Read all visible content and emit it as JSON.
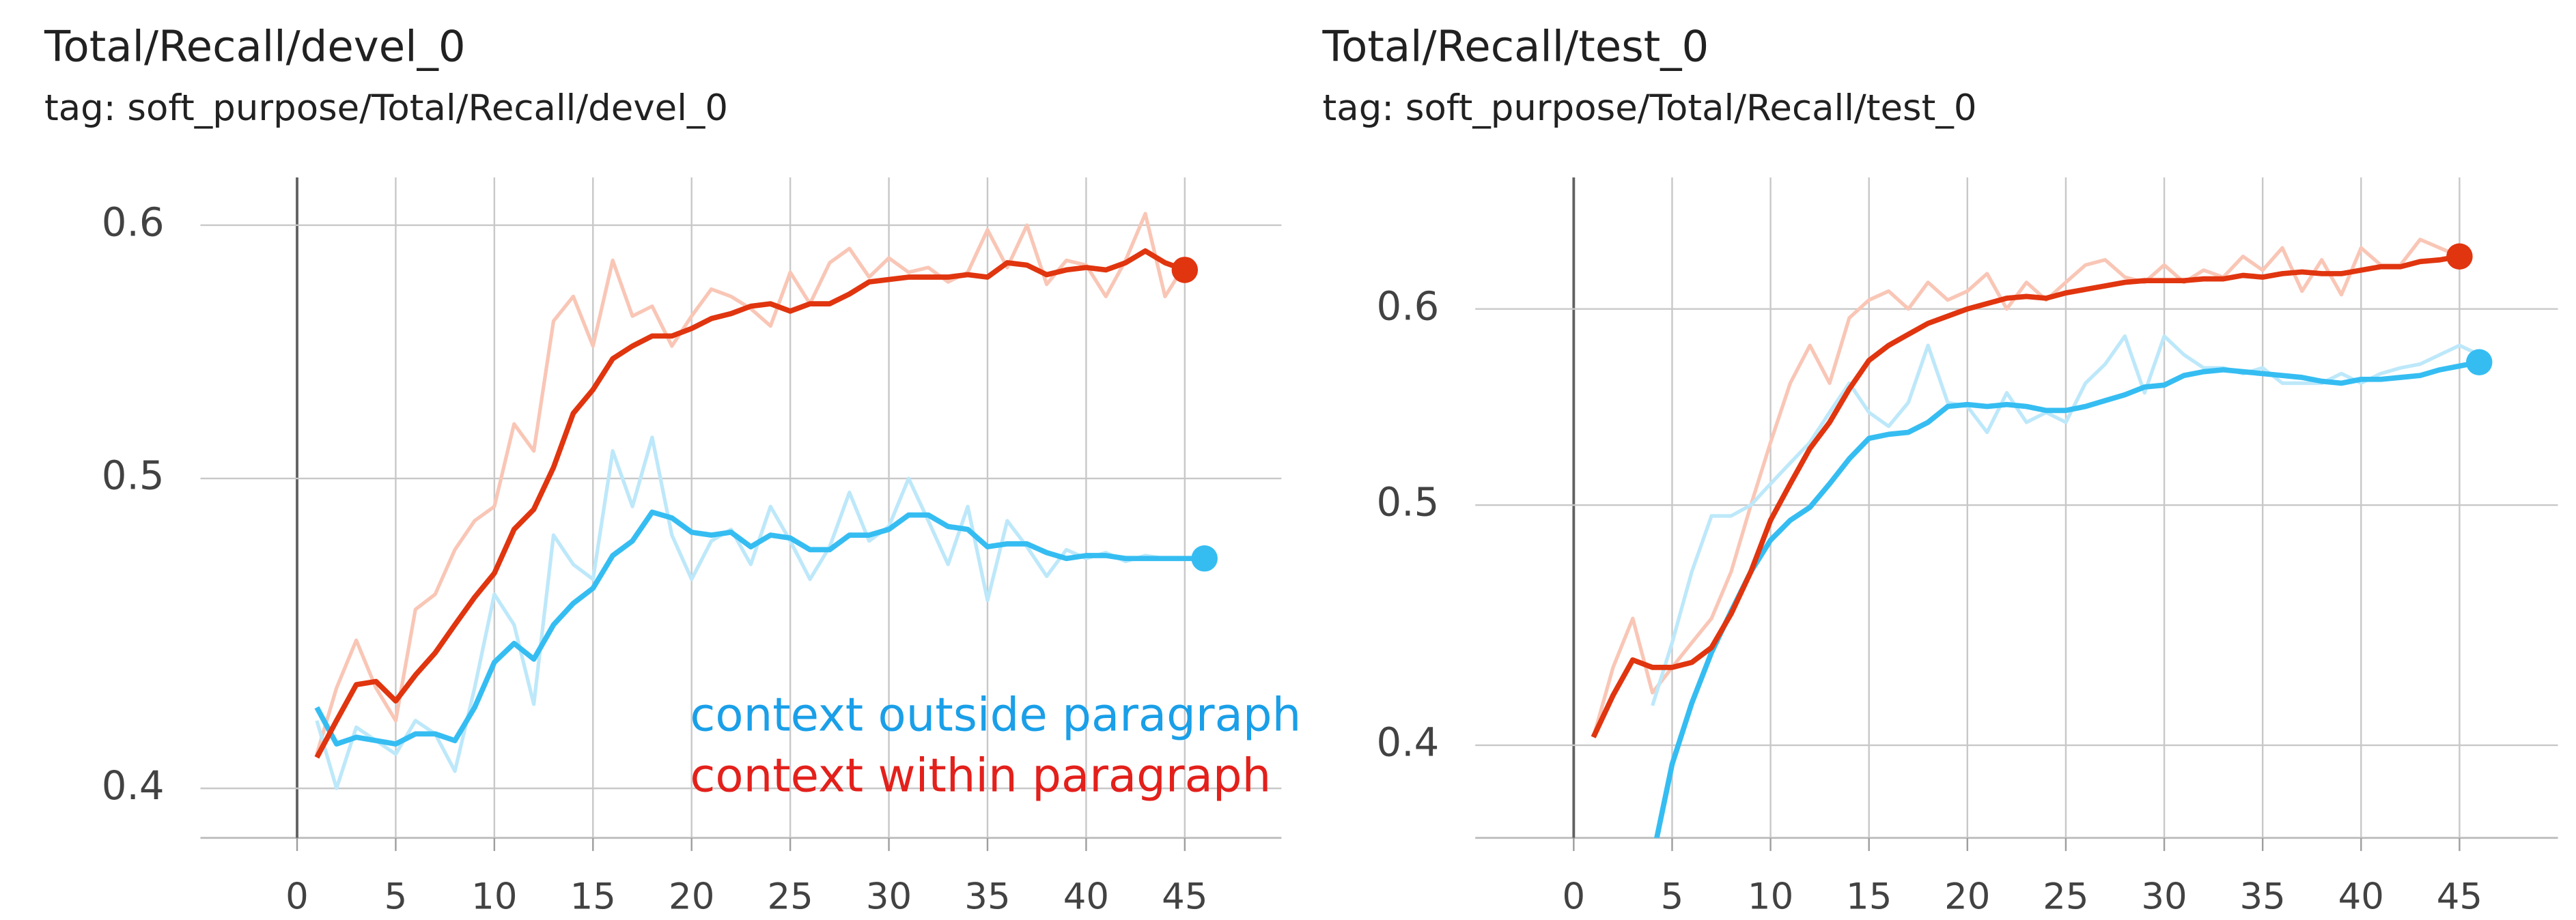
{
  "chart_data": [
    {
      "type": "line",
      "title": "Total/Recall/devel_0",
      "subtitle": "tag: soft_purpose/Total/Recall/devel_0",
      "log_scale": true,
      "grid": true,
      "xlim": [
        -4.9,
        49.9
      ],
      "xticks": [
        0,
        5,
        10,
        15,
        20,
        25,
        30,
        35,
        40,
        45
      ],
      "ylim": [
        0.386,
        0.621
      ],
      "yticks": [
        0.4,
        0.5,
        0.6
      ],
      "x": [
        1,
        2,
        3,
        4,
        5,
        6,
        7,
        8,
        9,
        10,
        11,
        12,
        13,
        14,
        15,
        16,
        17,
        18,
        19,
        20,
        21,
        22,
        23,
        24,
        25,
        26,
        27,
        28,
        29,
        30,
        31,
        32,
        33,
        34,
        35,
        36,
        37,
        38,
        39,
        40,
        41,
        42,
        43,
        44,
        45,
        46
      ],
      "series": [
        {
          "color": "#f9c6b6",
          "values": [
            0.41,
            0.43,
            0.445,
            0.43,
            0.42,
            0.455,
            0.46,
            0.475,
            0.485,
            0.49,
            0.52,
            0.51,
            0.56,
            0.57,
            0.55,
            0.585,
            0.562,
            0.566,
            0.55,
            0.562,
            0.573,
            0.57,
            0.565,
            0.558,
            0.58,
            0.567,
            0.584,
            0.59,
            0.578,
            0.586,
            0.58,
            0.582,
            0.576,
            0.58,
            0.598,
            0.582,
            0.6,
            0.575,
            0.585,
            0.583,
            0.57,
            0.585,
            0.605,
            0.57,
            0.583,
            null
          ]
        },
        {
          "color": "#bde8fa",
          "values": [
            0.42,
            0.4,
            0.418,
            0.414,
            0.41,
            0.42,
            0.416,
            0.405,
            0.43,
            0.46,
            0.45,
            0.425,
            0.48,
            0.47,
            0.465,
            0.51,
            0.49,
            0.515,
            0.48,
            0.465,
            0.478,
            0.482,
            0.47,
            0.49,
            0.478,
            0.465,
            0.476,
            0.495,
            0.478,
            0.483,
            0.5,
            0.485,
            0.47,
            0.49,
            0.458,
            0.485,
            0.476,
            0.466,
            0.475,
            0.472,
            0.474,
            0.471,
            0.473,
            0.472,
            0.472,
            0.472
          ]
        },
        {
          "color": "#35bdf2",
          "end_marker": true,
          "values": [
            0.424,
            0.413,
            0.415,
            0.414,
            0.413,
            0.416,
            0.416,
            0.414,
            0.424,
            0.438,
            0.444,
            0.439,
            0.45,
            0.457,
            0.462,
            0.473,
            0.478,
            0.488,
            0.486,
            0.481,
            0.48,
            0.481,
            0.476,
            0.48,
            0.479,
            0.475,
            0.475,
            0.48,
            0.48,
            0.482,
            0.487,
            0.487,
            0.483,
            0.482,
            0.476,
            0.477,
            0.477,
            0.474,
            0.472,
            0.473,
            0.473,
            0.472,
            0.472,
            0.472,
            0.472,
            0.472
          ]
        },
        {
          "color": "#e0350f",
          "end_marker": true,
          "values": [
            0.409,
            0.42,
            0.431,
            0.432,
            0.426,
            0.434,
            0.441,
            0.45,
            0.459,
            0.467,
            0.482,
            0.489,
            0.504,
            0.524,
            0.533,
            0.545,
            0.55,
            0.554,
            0.554,
            0.557,
            0.561,
            0.563,
            0.566,
            0.567,
            0.564,
            0.567,
            0.567,
            0.571,
            0.576,
            0.577,
            0.578,
            0.578,
            0.578,
            0.579,
            0.578,
            0.584,
            0.583,
            0.579,
            0.581,
            0.582,
            0.581,
            0.584,
            0.589,
            0.584,
            0.581,
            null
          ]
        }
      ],
      "annotations": [
        {
          "text": "context outside paragraph",
          "color": "#1a9fe8"
        },
        {
          "text": "context within paragraph",
          "color": "#e3201b"
        }
      ]
    },
    {
      "type": "line",
      "title": "Total/Recall/test_0",
      "subtitle": "tag: soft_purpose/Total/Recall/test_0",
      "log_scale": true,
      "grid": true,
      "xlim": [
        -5,
        50
      ],
      "xticks": [
        0,
        5,
        10,
        15,
        20,
        25,
        30,
        35,
        40,
        45
      ],
      "ylim": [
        0.367,
        0.678
      ],
      "yticks": [
        0.4,
        0.5,
        0.6
      ],
      "x": [
        1,
        2,
        3,
        4,
        5,
        6,
        7,
        8,
        9,
        10,
        11,
        12,
        13,
        14,
        15,
        16,
        17,
        18,
        19,
        20,
        21,
        22,
        23,
        24,
        25,
        26,
        27,
        28,
        29,
        30,
        31,
        32,
        33,
        34,
        35,
        36,
        37,
        38,
        39,
        40,
        41,
        42,
        43,
        44,
        45,
        46
      ],
      "series": [
        {
          "color": "#f9c6b6",
          "values": [
            0.403,
            0.43,
            0.45,
            0.42,
            0.43,
            0.44,
            0.45,
            0.47,
            0.5,
            0.53,
            0.56,
            0.58,
            0.56,
            0.595,
            0.605,
            0.61,
            0.6,
            0.615,
            0.605,
            0.61,
            0.62,
            0.6,
            0.615,
            0.605,
            0.615,
            0.625,
            0.628,
            0.618,
            0.615,
            0.625,
            0.615,
            0.622,
            0.618,
            0.63,
            0.622,
            0.635,
            0.61,
            0.628,
            0.608,
            0.635,
            0.625,
            0.625,
            0.64,
            0.635,
            0.63,
            null
          ]
        },
        {
          "color": "#bde8fa",
          "values": [
            null,
            null,
            null,
            0.415,
            0.44,
            0.47,
            0.495,
            0.495,
            0.5,
            0.51,
            0.52,
            0.53,
            0.545,
            0.56,
            0.545,
            0.538,
            0.55,
            0.58,
            0.55,
            0.548,
            0.535,
            0.555,
            0.54,
            0.545,
            0.54,
            0.56,
            0.57,
            0.585,
            0.555,
            0.585,
            0.575,
            0.568,
            0.568,
            0.565,
            0.568,
            0.56,
            0.56,
            0.56,
            0.565,
            0.56,
            0.565,
            0.568,
            0.57,
            0.575,
            0.58,
            0.575
          ]
        },
        {
          "color": "#35bdf2",
          "end_marker": true,
          "values": [
            null,
            null,
            null,
            0.36,
            0.393,
            0.416,
            0.436,
            0.453,
            0.47,
            0.484,
            0.493,
            0.499,
            0.51,
            0.522,
            0.532,
            0.534,
            0.535,
            0.54,
            0.548,
            0.549,
            0.548,
            0.549,
            0.548,
            0.546,
            0.546,
            0.548,
            0.551,
            0.554,
            0.558,
            0.559,
            0.564,
            0.566,
            0.567,
            0.566,
            0.565,
            0.564,
            0.563,
            0.561,
            0.56,
            0.562,
            0.562,
            0.563,
            0.564,
            0.567,
            0.569,
            0.571
          ]
        },
        {
          "color": "#e0350f",
          "end_marker": true,
          "values": [
            0.403,
            0.419,
            0.433,
            0.43,
            0.43,
            0.432,
            0.438,
            0.452,
            0.47,
            0.493,
            0.51,
            0.527,
            0.54,
            0.557,
            0.572,
            0.58,
            0.586,
            0.592,
            0.596,
            0.6,
            0.603,
            0.606,
            0.607,
            0.606,
            0.609,
            0.611,
            0.613,
            0.615,
            0.616,
            0.616,
            0.616,
            0.617,
            0.617,
            0.619,
            0.618,
            0.62,
            0.621,
            0.62,
            0.62,
            0.622,
            0.624,
            0.624,
            0.627,
            0.628,
            0.63,
            null
          ]
        }
      ]
    }
  ]
}
